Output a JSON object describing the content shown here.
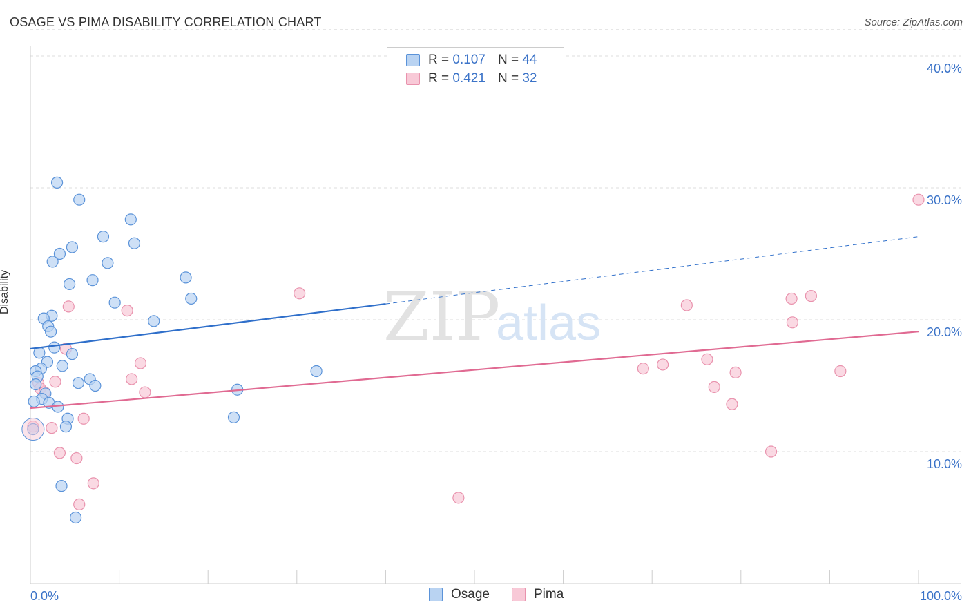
{
  "title": "OSAGE VS PIMA DISABILITY CORRELATION CHART",
  "source": "Source: ZipAtlas.com",
  "watermark": {
    "zip": "ZIP",
    "atlas": "atlas"
  },
  "legend": {
    "rows": [
      {
        "r_label": "R =",
        "r_value": "0.107",
        "n_label": "N =",
        "n_value": "44"
      },
      {
        "r_label": "R =",
        "r_value": "0.421",
        "n_label": "N =",
        "n_value": "32"
      }
    ]
  },
  "bottom_legend": {
    "osage": "Osage",
    "pima": "Pima"
  },
  "colors": {
    "osage_fill": "#b9d3f2",
    "osage_stroke": "#5b93d9",
    "osage_line": "#2f6fca",
    "pima_fill": "#f8c9d7",
    "pima_stroke": "#e992ad",
    "pima_line": "#e06a92",
    "tick_label": "#3b73c8",
    "grid": "#dddddd",
    "axis": "#cccccc"
  },
  "chart_data": {
    "type": "scatter",
    "title": "OSAGE VS PIMA DISABILITY CORRELATION CHART",
    "xlabel": "",
    "ylabel": "Disability",
    "xlim": [
      0,
      100
    ],
    "ylim": [
      0,
      42
    ],
    "x_tick_labels": [
      "0.0%",
      "100.0%"
    ],
    "y_ticks": [
      10,
      20,
      30,
      40
    ],
    "y_tick_labels": [
      "10.0%",
      "20.0%",
      "30.0%",
      "40.0%"
    ],
    "series": [
      {
        "name": "Osage",
        "R": 0.107,
        "N": 44,
        "trend": {
          "x0": 0,
          "y0": 17.8,
          "x1": 40,
          "y1": 21.2,
          "dash_to_x": 100,
          "dash_to_y": 26.3
        },
        "points": [
          {
            "x": 3.0,
            "y": 30.4
          },
          {
            "x": 5.5,
            "y": 29.1
          },
          {
            "x": 11.3,
            "y": 27.6
          },
          {
            "x": 8.2,
            "y": 26.3
          },
          {
            "x": 11.7,
            "y": 25.8
          },
          {
            "x": 4.7,
            "y": 25.5
          },
          {
            "x": 3.3,
            "y": 25.0
          },
          {
            "x": 2.5,
            "y": 24.4
          },
          {
            "x": 8.7,
            "y": 24.3
          },
          {
            "x": 17.5,
            "y": 23.2
          },
          {
            "x": 7.0,
            "y": 23.0
          },
          {
            "x": 4.4,
            "y": 22.7
          },
          {
            "x": 18.1,
            "y": 21.6
          },
          {
            "x": 9.5,
            "y": 21.3
          },
          {
            "x": 2.4,
            "y": 20.3
          },
          {
            "x": 1.5,
            "y": 20.1
          },
          {
            "x": 13.9,
            "y": 19.9
          },
          {
            "x": 2.0,
            "y": 19.5
          },
          {
            "x": 2.3,
            "y": 19.1
          },
          {
            "x": 2.7,
            "y": 17.9
          },
          {
            "x": 1.0,
            "y": 17.5
          },
          {
            "x": 4.7,
            "y": 17.4
          },
          {
            "x": 1.9,
            "y": 16.8
          },
          {
            "x": 3.6,
            "y": 16.5
          },
          {
            "x": 1.2,
            "y": 16.3
          },
          {
            "x": 0.6,
            "y": 16.1
          },
          {
            "x": 32.2,
            "y": 16.1
          },
          {
            "x": 0.8,
            "y": 15.7
          },
          {
            "x": 6.7,
            "y": 15.5
          },
          {
            "x": 5.4,
            "y": 15.2
          },
          {
            "x": 0.6,
            "y": 15.1
          },
          {
            "x": 7.3,
            "y": 15.0
          },
          {
            "x": 23.3,
            "y": 14.7
          },
          {
            "x": 1.7,
            "y": 14.4
          },
          {
            "x": 1.3,
            "y": 14.0
          },
          {
            "x": 0.4,
            "y": 13.8
          },
          {
            "x": 2.1,
            "y": 13.7
          },
          {
            "x": 3.1,
            "y": 13.4
          },
          {
            "x": 4.2,
            "y": 12.5
          },
          {
            "x": 22.9,
            "y": 12.6
          },
          {
            "x": 4.0,
            "y": 11.9
          },
          {
            "x": 0.3,
            "y": 11.7
          },
          {
            "x": 3.5,
            "y": 7.4
          },
          {
            "x": 5.1,
            "y": 5.0
          }
        ]
      },
      {
        "name": "Pima",
        "R": 0.421,
        "N": 32,
        "trend": {
          "x0": 0,
          "y0": 13.3,
          "x1": 100,
          "y1": 19.1
        },
        "points": [
          {
            "x": 100.0,
            "y": 29.1
          },
          {
            "x": 30.3,
            "y": 22.0
          },
          {
            "x": 87.9,
            "y": 21.8
          },
          {
            "x": 85.7,
            "y": 21.6
          },
          {
            "x": 73.9,
            "y": 21.1
          },
          {
            "x": 4.3,
            "y": 21.0
          },
          {
            "x": 10.9,
            "y": 20.7
          },
          {
            "x": 85.8,
            "y": 19.8
          },
          {
            "x": 4.0,
            "y": 17.8
          },
          {
            "x": 76.2,
            "y": 17.0
          },
          {
            "x": 12.4,
            "y": 16.7
          },
          {
            "x": 71.2,
            "y": 16.6
          },
          {
            "x": 69.0,
            "y": 16.3
          },
          {
            "x": 91.2,
            "y": 16.1
          },
          {
            "x": 79.4,
            "y": 16.0
          },
          {
            "x": 11.4,
            "y": 15.5
          },
          {
            "x": 2.8,
            "y": 15.3
          },
          {
            "x": 0.9,
            "y": 15.2
          },
          {
            "x": 77.0,
            "y": 14.9
          },
          {
            "x": 1.1,
            "y": 14.8
          },
          {
            "x": 1.6,
            "y": 14.5
          },
          {
            "x": 12.9,
            "y": 14.5
          },
          {
            "x": 79.0,
            "y": 13.6
          },
          {
            "x": 6.0,
            "y": 12.5
          },
          {
            "x": 0.3,
            "y": 11.9
          },
          {
            "x": 2.4,
            "y": 11.8
          },
          {
            "x": 83.4,
            "y": 10.0
          },
          {
            "x": 3.3,
            "y": 9.9
          },
          {
            "x": 5.2,
            "y": 9.5
          },
          {
            "x": 7.1,
            "y": 7.6
          },
          {
            "x": 48.2,
            "y": 6.5
          },
          {
            "x": 5.5,
            "y": 6.0
          }
        ]
      }
    ]
  }
}
